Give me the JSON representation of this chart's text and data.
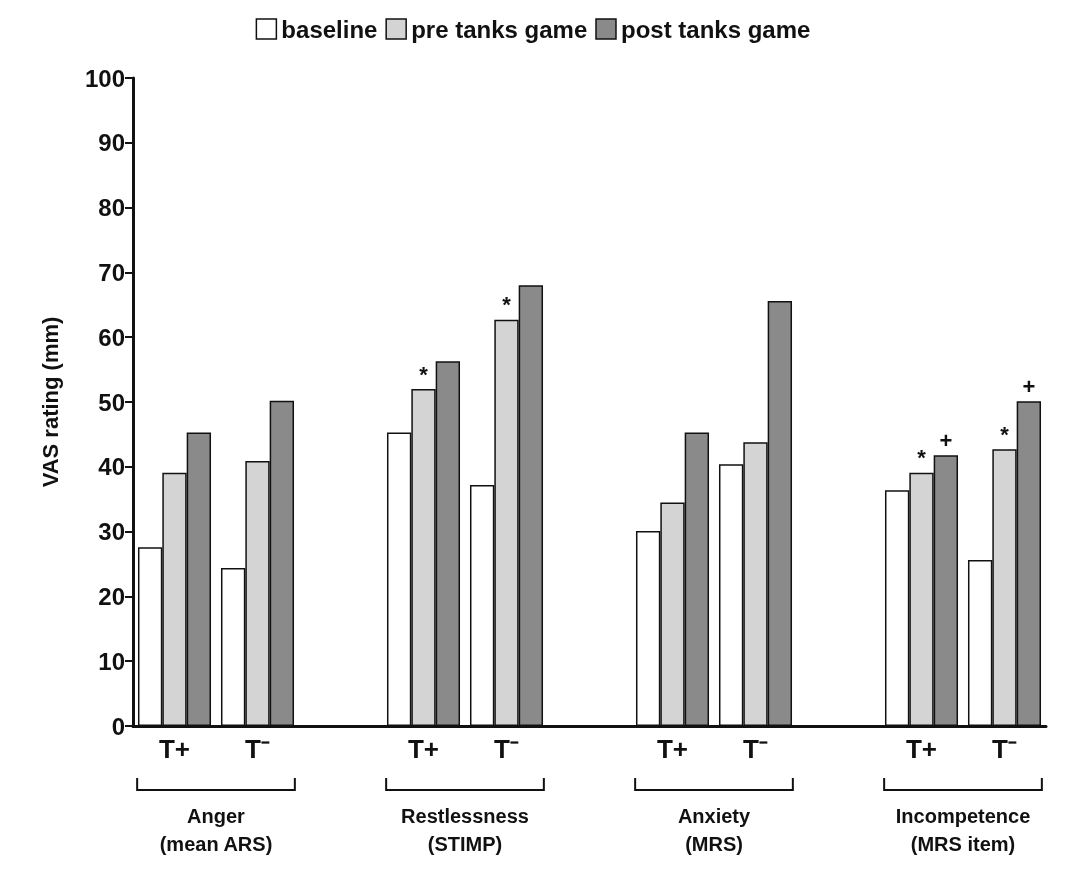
{
  "chart_data": {
    "type": "bar",
    "ylabel": "VAS rating (mm)",
    "categories": [
      "T+",
      "T⁻",
      null,
      "T+",
      "T⁻",
      null,
      "T+",
      "T⁻",
      null,
      "T+",
      "T⁻"
    ],
    "series": [
      {
        "name": "baseline",
        "color": "#ffffff",
        "values": [
          27.6,
          24.4,
          null,
          45.3,
          37.2,
          null,
          30.1,
          40.4,
          null,
          36.4,
          25.6
        ]
      },
      {
        "name": "pre tanks game",
        "color": "#d4d4d4",
        "values": [
          39.1,
          40.9,
          null,
          52,
          62.7,
          null,
          34.5,
          43.8,
          null,
          39.1,
          42.7
        ],
        "value_labels": [
          null,
          null,
          null,
          "*",
          "*",
          null,
          null,
          null,
          null,
          "*",
          "*"
        ]
      },
      {
        "name": "post tanks game",
        "color": "#8a8a8a",
        "values": [
          45.3,
          50.2,
          null,
          56.3,
          68,
          null,
          45.3,
          65.6,
          null,
          41.8,
          50.1
        ],
        "value_labels": [
          null,
          null,
          null,
          null,
          null,
          null,
          null,
          null,
          null,
          "+",
          "+"
        ]
      }
    ],
    "ylim": [
      0,
      100
    ],
    "yticks": [
      0,
      10,
      20,
      30,
      40,
      50,
      60,
      70,
      80,
      90,
      100
    ],
    "grid": false,
    "legend": "top",
    "annotations": [
      "Anger\n(mean ARS)",
      "Restlessness\n(STIMP)",
      "Anxiety\n(MRS)",
      "Incompetence\n(MRS item)"
    ]
  }
}
